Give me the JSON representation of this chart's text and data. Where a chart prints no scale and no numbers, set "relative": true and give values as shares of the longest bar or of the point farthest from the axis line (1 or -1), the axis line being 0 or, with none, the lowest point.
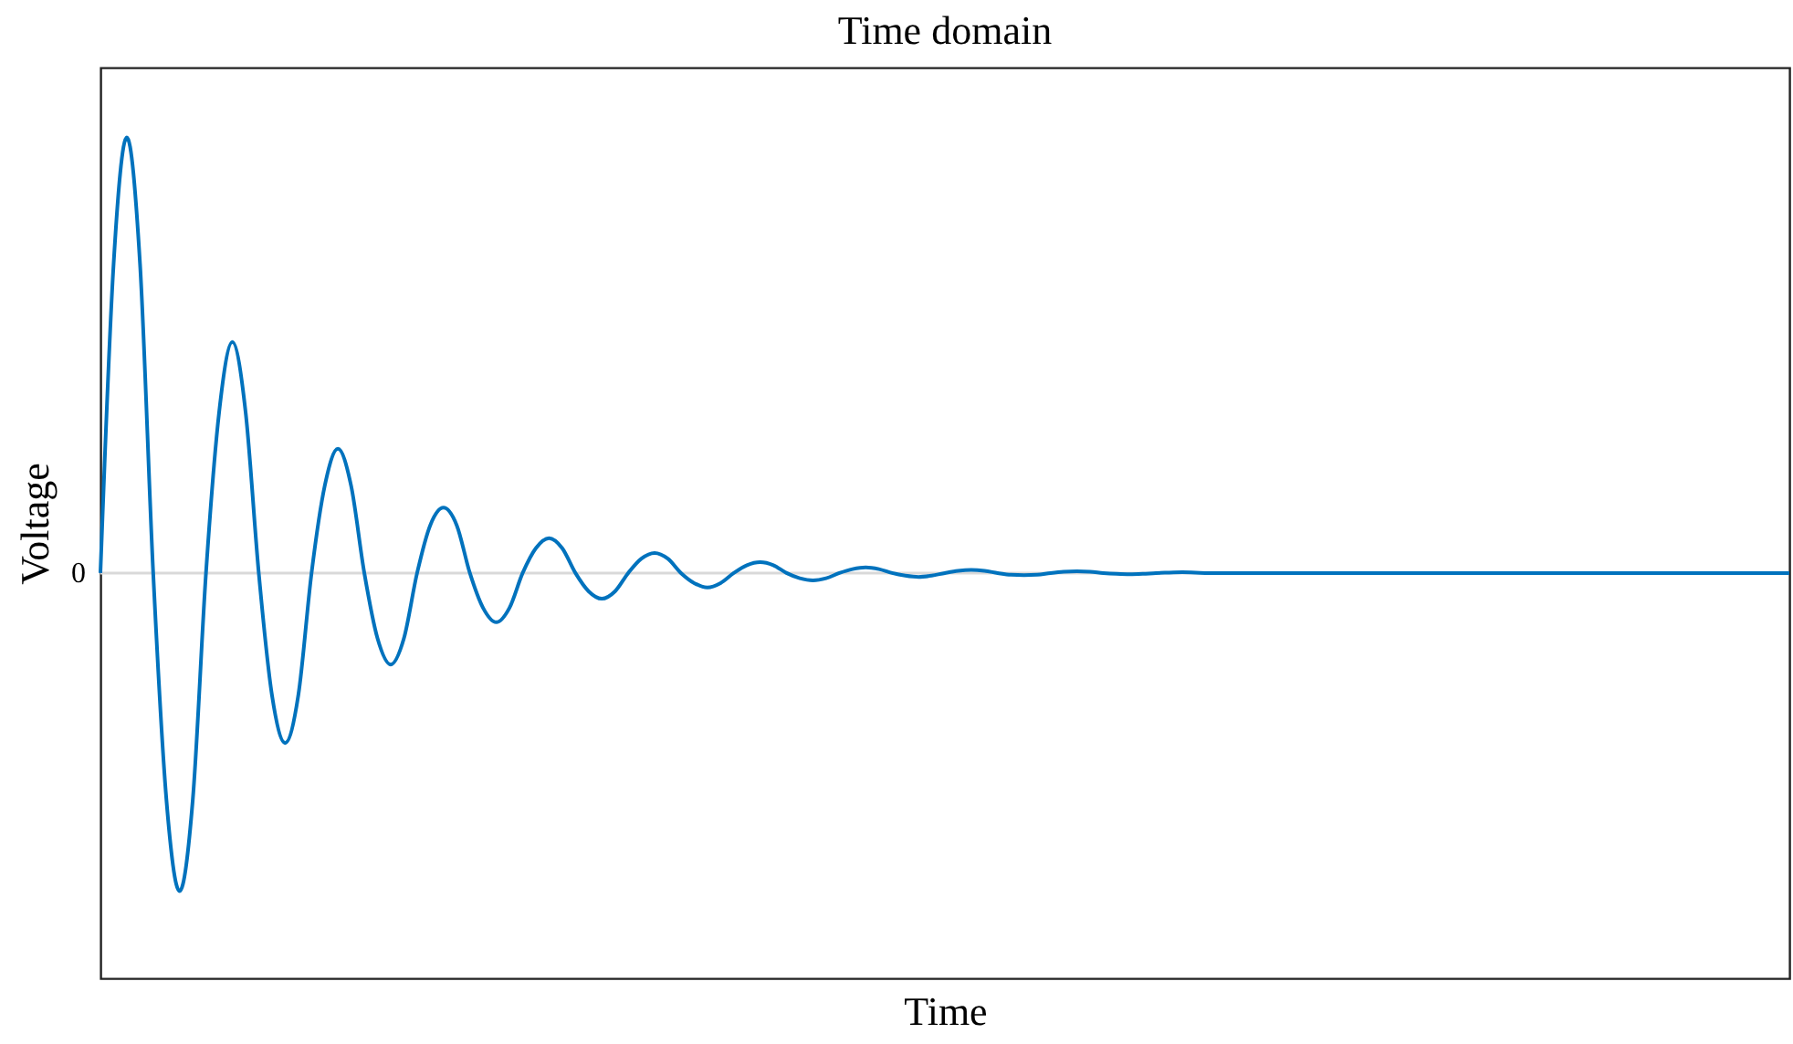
{
  "chart_data": {
    "type": "line",
    "title": "Time domain",
    "xlabel": "Time",
    "ylabel": "Voltage",
    "relative": true,
    "ref_lines": [
      {
        "axis": "y",
        "value": 0,
        "label": "0",
        "color": "#d9d9d9"
      }
    ],
    "grid": false,
    "marker": "none",
    "line_style": "solid",
    "categories": [
      null,
      null,
      null,
      null,
      null,
      null,
      null,
      null,
      null,
      null,
      null,
      null,
      null,
      null,
      null,
      null,
      null,
      null,
      null,
      null,
      null,
      null,
      null,
      null,
      null,
      null,
      null,
      null,
      null,
      null,
      null,
      null,
      null,
      null,
      null,
      null,
      null,
      null,
      null,
      null,
      null,
      null,
      null,
      null,
      null,
      null,
      null,
      null,
      null,
      null,
      null,
      null,
      null,
      null,
      null,
      null,
      null,
      null,
      null,
      null,
      null,
      null,
      null,
      null,
      null,
      null,
      null,
      null,
      null,
      null,
      null,
      null,
      null,
      null,
      null,
      null,
      null,
      null,
      null,
      null,
      null,
      null,
      null,
      null,
      null,
      null,
      null,
      null,
      null,
      null,
      null,
      null,
      null,
      null,
      null,
      null,
      null,
      null,
      null,
      null,
      null,
      null,
      null,
      null,
      null,
      null,
      null,
      null,
      null,
      null,
      null,
      null,
      null,
      null,
      null,
      null,
      null,
      null,
      null,
      null,
      null,
      null,
      null,
      null,
      null,
      null,
      null,
      null,
      null
    ],
    "series": [
      {
        "color": "#0072bd",
        "values": [
          0,
          0.71,
          1,
          0.71,
          0,
          -0.52,
          -0.73,
          -0.52,
          0,
          0.37,
          0.53,
          0.37,
          0,
          -0.28,
          -0.39,
          -0.28,
          0,
          0.2,
          0.285,
          0.2,
          0,
          -0.15,
          -0.21,
          -0.15,
          0,
          0.11,
          0.15,
          0.11,
          0,
          -0.08,
          -0.113,
          -0.08,
          0,
          0.057,
          0.08,
          0.057,
          0,
          -0.042,
          -0.059,
          -0.042,
          0,
          0.033,
          0.046,
          0.033,
          0,
          -0.023,
          -0.033,
          -0.023,
          0,
          0.018,
          0.025,
          0.018,
          0,
          -0.012,
          -0.017,
          -0.012,
          0,
          0.009,
          0.013,
          0.009,
          0,
          -0.006,
          -0.009,
          -0.006,
          0,
          0.005,
          0.007,
          0.005,
          0,
          -0.004,
          -0.005,
          -0.004,
          0,
          0.003,
          0.004,
          0.003,
          0,
          -0.002,
          -0.003,
          -0.002,
          0,
          0.001,
          0.002,
          0.001,
          0,
          0,
          0,
          0,
          0,
          0,
          0,
          0,
          0,
          0,
          0,
          0,
          0,
          0,
          0,
          0,
          0,
          0,
          0,
          0,
          0,
          0,
          0,
          0,
          0,
          0,
          0,
          0,
          0,
          0,
          0,
          0,
          0,
          0,
          0,
          0,
          0,
          0,
          0,
          0,
          0,
          0,
          0,
          0,
          0
        ]
      }
    ]
  }
}
